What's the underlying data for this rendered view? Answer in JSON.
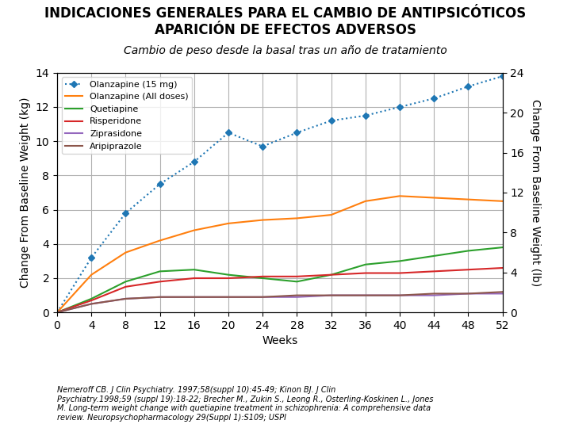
{
  "chart_data": {
    "type": "line",
    "title": "INDICACIONES GENERALES PARA EL CAMBIO DE ANTIPSICÓTICOS\nAPARICIÓN DE EFECTOS ADVERSOS",
    "subtitle": "Cambio de peso desde la basal tras un año de tratamiento",
    "x_label": "Weeks",
    "y_label": "Change From Baseline Weight (kg)",
    "y2_label": "Change From Baseline Weight (lb)",
    "x": [
      0,
      4,
      8,
      12,
      16,
      20,
      24,
      28,
      32,
      36,
      40,
      44,
      48,
      52
    ],
    "series": [
      {
        "name": "Olanzapine (15 mg)",
        "line_style": "dotted",
        "marker": "diamond",
        "values": [
          0.0,
          3.2,
          5.8,
          7.5,
          8.8,
          10.5,
          9.7,
          10.5,
          11.2,
          11.5,
          12.0,
          12.5,
          13.2,
          13.8
        ]
      },
      {
        "name": "Olanzapine (All doses)",
        "line_style": "solid",
        "values": [
          0.0,
          2.2,
          3.5,
          4.2,
          4.8,
          5.2,
          5.4,
          5.5,
          5.7,
          6.5,
          6.8,
          6.7,
          6.6,
          6.5
        ]
      },
      {
        "name": "Quetiapine",
        "line_style": "solid",
        "values": [
          0.0,
          0.8,
          1.8,
          2.4,
          2.5,
          2.2,
          2.0,
          1.8,
          2.2,
          2.8,
          3.0,
          3.3,
          3.6,
          3.8
        ]
      },
      {
        "name": "Risperidone",
        "line_style": "solid",
        "values": [
          0.0,
          0.7,
          1.5,
          1.8,
          2.0,
          2.0,
          2.1,
          2.1,
          2.2,
          2.3,
          2.3,
          2.4,
          2.5,
          2.6
        ]
      },
      {
        "name": "Ziprasidone",
        "line_style": "solid",
        "values": [
          0.0,
          0.5,
          0.8,
          0.9,
          0.9,
          0.9,
          0.9,
          0.9,
          1.0,
          1.0,
          1.0,
          1.0,
          1.1,
          1.1
        ]
      },
      {
        "name": "Aripiprazole",
        "line_style": "solid",
        "values": [
          0.0,
          0.5,
          0.8,
          0.9,
          0.9,
          0.9,
          0.9,
          1.0,
          1.0,
          1.0,
          1.0,
          1.1,
          1.1,
          1.2
        ]
      }
    ],
    "xlim": [
      0,
      52
    ],
    "xticks": [
      0,
      4,
      8,
      12,
      16,
      20,
      24,
      28,
      32,
      36,
      40,
      44,
      48,
      52
    ],
    "ylim": [
      0,
      14
    ],
    "yticks": [
      0,
      2,
      4,
      6,
      8,
      10,
      12,
      14
    ],
    "y2lim": [
      0,
      24
    ],
    "y2ticks": [
      0,
      4,
      8,
      12,
      16,
      20,
      24
    ],
    "grid": true,
    "legend": "upper left",
    "annotations": [
      "Nemeroff CB. J Clin Psychiatry. 1997;58(suppl 10):45-49; Kinon BJ. J Clin\nPsychiatry.1998;59 (suppl 19):18-22; Brecher M., Zukin S., Leong R., Osterling-Koskinen L., Jones\nM. Long-term weight change with quetiapine treatment in schizophrenia: A comprehensive data\nreview. Neuropsychopharmacology 29(Suppl 1):S109; USPI"
    ]
  }
}
